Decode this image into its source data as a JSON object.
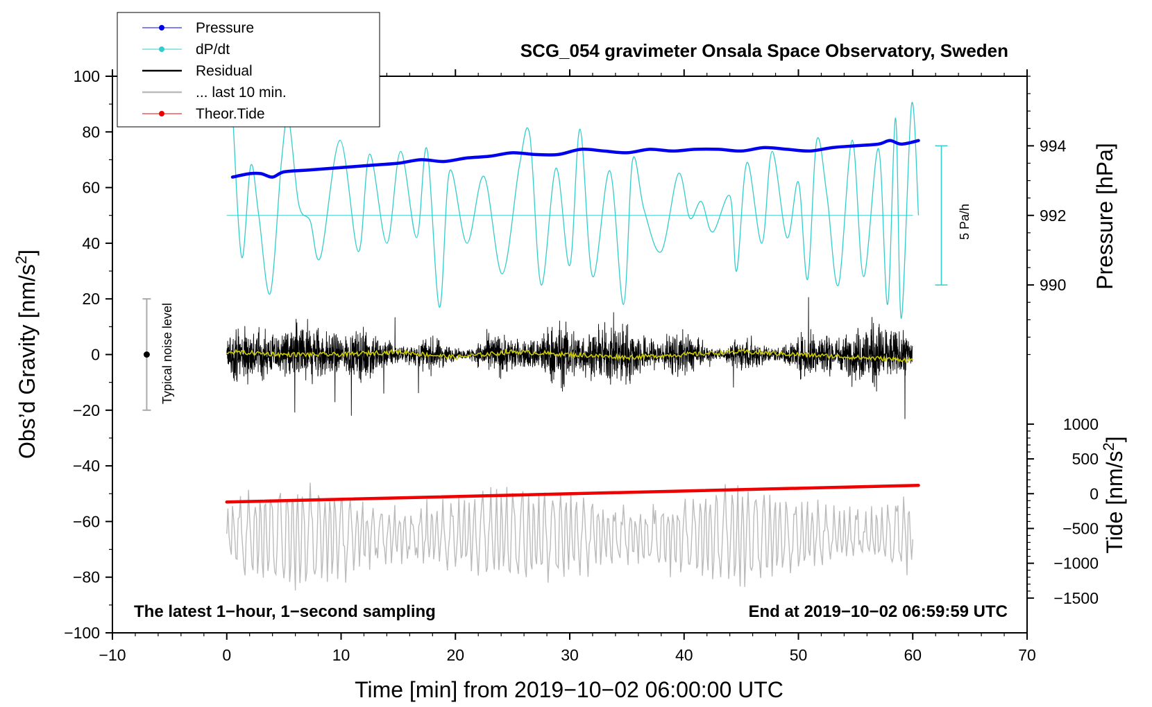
{
  "chart_data": {
    "type": "line",
    "title": "SCG_054 gravimeter Onsala Space Observatory, Sweden",
    "xlabel": "Time [min] from 2019−10−02 06:00:00 UTC",
    "ylabel_left": {
      "main": "Obs’d Gravity [nm/s",
      "sup": "2",
      "end": "]"
    },
    "ylabel_right_top": "Pressure [hPa]",
    "ylabel_right_bottom": {
      "main": "Tide [nm/s",
      "sup": "2",
      "end": "]"
    },
    "xlim": [
      -10,
      70
    ],
    "ylim_left": [
      -100,
      100
    ],
    "pressure_axis": {
      "ticks": [
        990,
        992,
        994
      ],
      "tick_labels": [
        "990",
        "992",
        "994"
      ],
      "gravity_at_990": 25,
      "gravity_per_hPa": 12.5
    },
    "tide_axis": {
      "ticks": [
        -1500,
        -1000,
        -500,
        0,
        500,
        1000
      ],
      "tick_labels": [
        "−1500",
        "−1000",
        "−500",
        "0",
        "500",
        "1000"
      ],
      "gravity_per_unit": 0.025,
      "gravity_at_zero": -50
    },
    "x_ticks": [
      -10,
      0,
      10,
      20,
      30,
      40,
      50,
      60,
      70
    ],
    "x_tick_labels": [
      "−10",
      "0",
      "10",
      "20",
      "30",
      "40",
      "50",
      "60",
      "70"
    ],
    "y_ticks": [
      -100,
      -80,
      -60,
      -40,
      -20,
      0,
      20,
      40,
      60,
      80,
      100
    ],
    "y_tick_labels": [
      "−100",
      "−80",
      "−60",
      "−40",
      "−20",
      "0",
      "20",
      "40",
      "60",
      "80",
      "100"
    ],
    "series": [
      {
        "name": "Pressure",
        "color": "#0000ee",
        "x": [
          0.5,
          2,
          3,
          4,
          5,
          7,
          9,
          11,
          13,
          15,
          17,
          19,
          21,
          23,
          25,
          27,
          29,
          31,
          33,
          35,
          37,
          39,
          41,
          43,
          45,
          47,
          49,
          51,
          53,
          55,
          57,
          58,
          59,
          60.5
        ],
        "y_hPa": [
          993.1,
          993.2,
          993.2,
          993.1,
          993.25,
          993.3,
          993.35,
          993.4,
          993.45,
          993.5,
          993.6,
          993.55,
          993.65,
          993.7,
          993.8,
          993.75,
          993.75,
          993.9,
          993.85,
          993.8,
          993.9,
          993.85,
          993.9,
          993.9,
          993.85,
          993.95,
          993.9,
          993.85,
          993.95,
          994.0,
          994.05,
          994.15,
          994.05,
          994.15
        ]
      },
      {
        "name": "dP/dt",
        "color": "#33cccc",
        "x": [
          0.5,
          1.3,
          2.1,
          2.8,
          3.8,
          4.8,
          5.4,
          6.3,
          7.3,
          8.2,
          9.9,
          11.5,
          12.5,
          14.0,
          15.2,
          16.6,
          17.5,
          18.6,
          19.5,
          21.0,
          22.5,
          24.1,
          25.6,
          26.5,
          27.5,
          28.8,
          30.0,
          30.9,
          32.0,
          33.5,
          34.7,
          35.5,
          36.5,
          38.0,
          39.5,
          40.5,
          41.5,
          42.5,
          44.0,
          44.6,
          45.5,
          46.8,
          47.7,
          49.0,
          50.0,
          50.8,
          51.6,
          52.5,
          53.5,
          54.7,
          55.7,
          57.0,
          57.8,
          58.5,
          59.0,
          59.9,
          60.5
        ],
        "y": [
          88,
          35,
          68,
          50,
          22,
          70,
          85,
          54,
          48,
          35,
          77,
          37,
          72,
          40,
          73,
          42,
          74,
          17,
          66,
          40,
          64,
          29,
          68,
          79,
          25,
          67,
          32,
          81,
          28,
          66,
          18,
          70,
          52,
          37,
          65,
          49,
          55,
          44,
          57,
          30,
          69,
          40,
          73,
          42,
          62,
          27,
          77,
          57,
          25,
          77,
          28,
          74,
          18,
          85,
          13,
          90,
          50
        ]
      },
      {
        "name": "Residual",
        "color": "#000000",
        "x_range": [
          0,
          60
        ],
        "typical_range": [
          -20,
          20
        ]
      },
      {
        "name": "... last 10 min.",
        "color": "#bbbbbb"
      },
      {
        "name": "Theor.Tide",
        "color": "#ee0000",
        "x": [
          0,
          60.5
        ],
        "y_tide": [
          -120,
          120
        ]
      }
    ],
    "running_mean": {
      "color": "#cccc00",
      "x": [
        0,
        5,
        10,
        15,
        20,
        25,
        30,
        35,
        40,
        45,
        50,
        55,
        60
      ],
      "y": [
        1,
        0,
        0,
        1,
        -1,
        1,
        0,
        -1,
        0,
        1,
        0,
        -1,
        -2
      ]
    },
    "legend": [
      {
        "label": "Pressure",
        "color": "#0000ee",
        "marker": true
      },
      {
        "label": "dP/dt",
        "color": "#33cccc",
        "marker": true
      },
      {
        "label": "Residual",
        "color": "#000000",
        "marker": false
      },
      {
        "label": "... last 10 min.",
        "color": "#bbbbbb",
        "marker": false
      },
      {
        "label": "Theor.Tide",
        "color": "#ee0000",
        "marker": true
      }
    ],
    "legend_position": "top-left",
    "annotations": {
      "noise_label": "Typical noise level",
      "rate_label": "5 Pa/h",
      "bottom_left": "The latest 1−hour, 1−second sampling",
      "bottom_right": "End at 2019−10−02 06:59:59 UTC"
    }
  }
}
